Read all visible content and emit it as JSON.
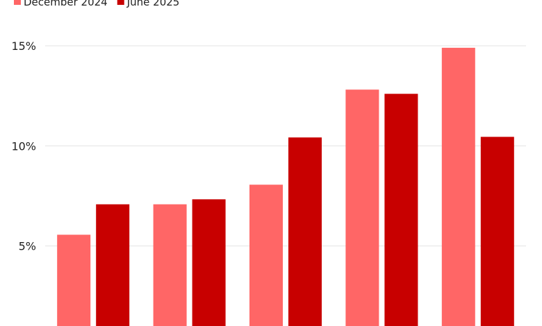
{
  "chart_data": {
    "type": "bar",
    "categories": [
      null,
      null,
      null,
      null,
      null
    ],
    "series": [
      {
        "name": "December 2024",
        "color": "#ff6666",
        "values": [
          5.56,
          7.08,
          8.06,
          12.81,
          14.9
        ]
      },
      {
        "name": "June 2025",
        "color": "#c80000",
        "values": [
          7.08,
          7.33,
          10.42,
          12.6,
          10.45
        ]
      }
    ],
    "ylim": [
      1,
      15
    ],
    "yticks": [
      {
        "value": 5,
        "label": "5%"
      },
      {
        "value": 10,
        "label": "10%"
      },
      {
        "value": 15,
        "label": "15%"
      }
    ],
    "grid": true
  }
}
